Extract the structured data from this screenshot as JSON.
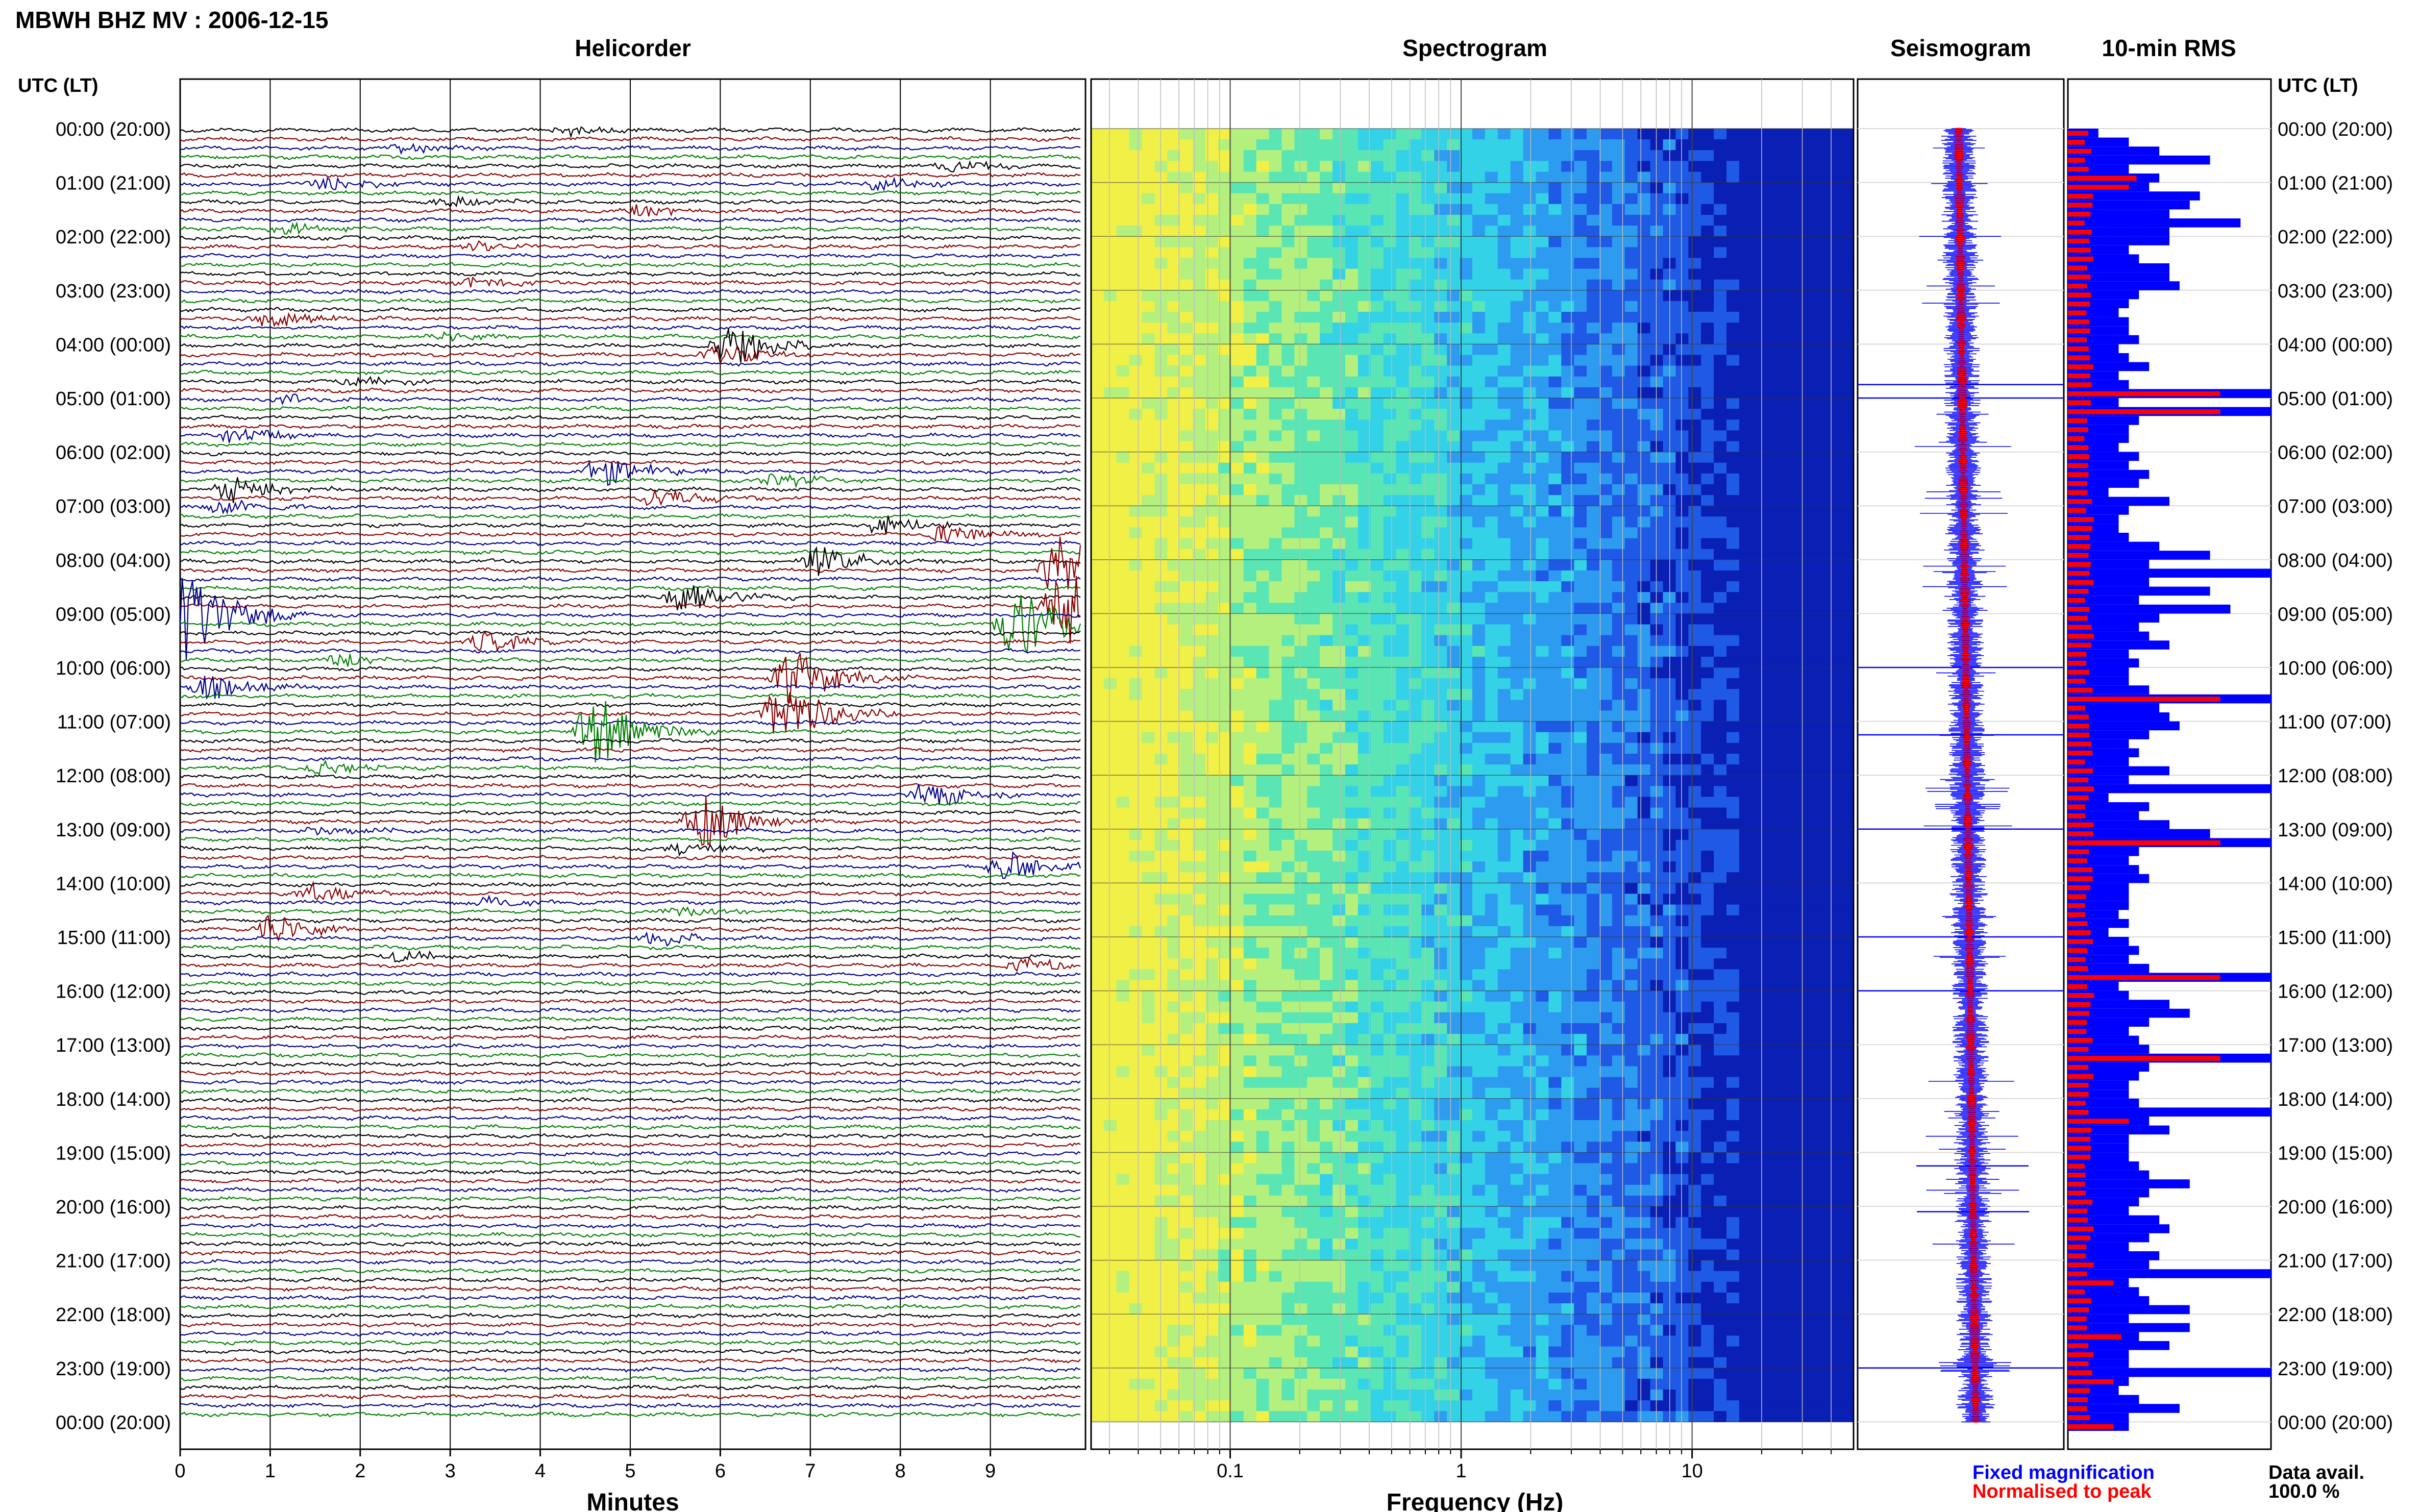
{
  "page_title": "MBWH BHZ MV : 2006-12-15",
  "axis_time_label_left": "UTC (LT)",
  "axis_time_label_right": "UTC (LT)",
  "time_labels": [
    "00:00 (20:00)",
    "01:00 (21:00)",
    "02:00 (22:00)",
    "03:00 (23:00)",
    "04:00 (00:00)",
    "05:00 (01:00)",
    "06:00 (02:00)",
    "07:00 (03:00)",
    "08:00 (04:00)",
    "09:00 (05:00)",
    "10:00 (06:00)",
    "11:00 (07:00)",
    "12:00 (08:00)",
    "13:00 (09:00)",
    "14:00 (10:00)",
    "15:00 (11:00)",
    "16:00 (12:00)",
    "17:00 (13:00)",
    "18:00 (14:00)",
    "19:00 (15:00)",
    "20:00 (16:00)",
    "21:00 (17:00)",
    "22:00 (18:00)",
    "23:00 (19:00)",
    "00:00 (20:00)"
  ],
  "colors": {
    "black": "#000000",
    "red": "#8b0000",
    "green": "#008000",
    "blue": "#00008b",
    "seis_blue": "#0000ff",
    "seis_red": "#ff0000",
    "grid": "#d9d9d9"
  },
  "legend": {
    "fixed_magnification": "Fixed magnification",
    "normalised_to_peak": "Normalised to peak",
    "data_avail_label": "Data avail.",
    "data_avail_value": "100.0 %"
  },
  "chart_data": [
    {
      "type": "line",
      "panel": "helicorder",
      "title": "Helicorder",
      "xlabel": "Minutes",
      "xlim": [
        0,
        10
      ],
      "x_ticks": [
        "0",
        "1",
        "2",
        "3",
        "4",
        "5",
        "6",
        "7",
        "8",
        "9"
      ],
      "traces_per_hour": 6,
      "trace_minutes": 10,
      "trace_colors": [
        "black",
        "red",
        "blue",
        "green"
      ],
      "events": [
        {
          "trace": 0,
          "minute": 4.3,
          "amp": 0.3
        },
        {
          "trace": 2,
          "minute": 2.5,
          "amp": 0.3
        },
        {
          "trace": 4,
          "minute": 8.6,
          "amp": 0.3
        },
        {
          "trace": 6,
          "minute": 1.6,
          "amp": 0.4
        },
        {
          "trace": 6,
          "minute": 7.8,
          "amp": 0.35
        },
        {
          "trace": 8,
          "minute": 3.0,
          "amp": 0.3
        },
        {
          "trace": 9,
          "minute": 5.1,
          "amp": 0.35
        },
        {
          "trace": 11,
          "minute": 1.2,
          "amp": 0.3
        },
        {
          "trace": 13,
          "minute": 3.3,
          "amp": 0.3
        },
        {
          "trace": 17,
          "minute": 3.2,
          "amp": 0.3
        },
        {
          "trace": 21,
          "minute": 1.0,
          "amp": 0.6
        },
        {
          "trace": 23,
          "minute": 3.0,
          "amp": 0.3
        },
        {
          "trace": 24,
          "minute": 6.1,
          "amp": 1.2
        },
        {
          "trace": 25,
          "minute": 6.0,
          "amp": 0.5
        },
        {
          "trace": 28,
          "minute": 2.0,
          "amp": 0.3
        },
        {
          "trace": 30,
          "minute": 1.2,
          "amp": 0.3
        },
        {
          "trace": 34,
          "minute": 0.6,
          "amp": 0.5
        },
        {
          "trace": 38,
          "minute": 4.7,
          "amp": 0.8
        },
        {
          "trace": 39,
          "minute": 6.6,
          "amp": 0.4
        },
        {
          "trace": 40,
          "minute": 0.6,
          "amp": 0.8
        },
        {
          "trace": 41,
          "minute": 5.3,
          "amp": 0.6
        },
        {
          "trace": 42,
          "minute": 0.5,
          "amp": 0.4
        },
        {
          "trace": 44,
          "minute": 7.8,
          "amp": 0.5
        },
        {
          "trace": 45,
          "minute": 8.5,
          "amp": 0.6
        },
        {
          "trace": 48,
          "minute": 7.1,
          "amp": 0.8
        },
        {
          "trace": 49,
          "minute": 9.8,
          "amp": 2.0
        },
        {
          "trace": 52,
          "minute": 5.6,
          "amp": 1.0
        },
        {
          "trace": 53,
          "minute": 9.8,
          "amp": 2.5
        },
        {
          "trace": 54,
          "minute": 0.0,
          "amp": 3.0
        },
        {
          "trace": 55,
          "minute": 9.3,
          "amp": 2.0
        },
        {
          "trace": 57,
          "minute": 3.4,
          "amp": 0.6
        },
        {
          "trace": 59,
          "minute": 1.8,
          "amp": 0.4
        },
        {
          "trace": 61,
          "minute": 6.8,
          "amp": 1.5
        },
        {
          "trace": 62,
          "minute": 0.3,
          "amp": 0.7
        },
        {
          "trace": 65,
          "minute": 6.7,
          "amp": 1.8
        },
        {
          "trace": 67,
          "minute": 4.6,
          "amp": 2.0
        },
        {
          "trace": 71,
          "minute": 1.6,
          "amp": 0.4
        },
        {
          "trace": 74,
          "minute": 8.3,
          "amp": 0.8
        },
        {
          "trace": 77,
          "minute": 5.8,
          "amp": 1.4
        },
        {
          "trace": 78,
          "minute": 1.6,
          "amp": 0.3
        },
        {
          "trace": 80,
          "minute": 5.6,
          "amp": 0.4
        },
        {
          "trace": 82,
          "minute": 9.2,
          "amp": 0.9
        },
        {
          "trace": 85,
          "minute": 1.5,
          "amp": 0.5
        },
        {
          "trace": 86,
          "minute": 3.4,
          "amp": 0.3
        },
        {
          "trace": 87,
          "minute": 5.6,
          "amp": 0.3
        },
        {
          "trace": 89,
          "minute": 1.0,
          "amp": 0.9
        },
        {
          "trace": 90,
          "minute": 5.3,
          "amp": 0.4
        },
        {
          "trace": 92,
          "minute": 2.4,
          "amp": 0.3
        },
        {
          "trace": 93,
          "minute": 9.4,
          "amp": 0.4
        }
      ]
    },
    {
      "type": "heatmap",
      "panel": "spectrogram",
      "title": "Spectrogram",
      "xlabel": "Frequency (Hz)",
      "x_scale": "log",
      "xlim": [
        0.025,
        50
      ],
      "x_tick_values": [
        0.1,
        1,
        10
      ],
      "x_tick_labels": [
        "0.1",
        "1",
        "10"
      ],
      "colormap": [
        "#0a1fb4",
        "#1e5ae6",
        "#2d9cf0",
        "#33d2e6",
        "#5ae6b4",
        "#b4f07d",
        "#f0f046"
      ]
    },
    {
      "type": "line",
      "panel": "seismogram",
      "title": "Seismogram",
      "spikes": [
        {
          "hour": 4.75,
          "extent": "full"
        },
        {
          "hour": 5.0,
          "extent": "full"
        },
        {
          "hour": 10.0,
          "extent": "full"
        },
        {
          "hour": 11.25,
          "extent": "full"
        },
        {
          "hour": 13.0,
          "extent": "full"
        },
        {
          "hour": 15.0,
          "extent": "full"
        },
        {
          "hour": 16.0,
          "extent": "full"
        },
        {
          "hour": 19.25,
          "extent": "partial"
        },
        {
          "hour": 20.1,
          "extent": "partial"
        },
        {
          "hour": 23.0,
          "extent": "full"
        }
      ]
    },
    {
      "type": "bar",
      "panel": "rms",
      "title": "10-min RMS",
      "orientation": "horizontal",
      "bins_per_hour": 6,
      "blue_values": [
        0.15,
        0.3,
        0.45,
        0.7,
        0.3,
        0.45,
        0.4,
        0.65,
        0.6,
        0.5,
        0.85,
        0.5,
        0.5,
        0.3,
        0.35,
        0.5,
        0.5,
        0.55,
        0.35,
        0.3,
        0.25,
        0.3,
        0.3,
        0.35,
        0.25,
        0.3,
        0.4,
        0.25,
        0.3,
        1.0,
        0.25,
        1.0,
        0.35,
        0.3,
        0.3,
        0.25,
        0.35,
        0.3,
        0.4,
        0.35,
        0.2,
        0.5,
        0.3,
        0.25,
        0.25,
        0.3,
        0.45,
        0.7,
        0.4,
        1.0,
        0.4,
        0.7,
        0.35,
        0.8,
        0.45,
        0.35,
        0.4,
        0.5,
        0.3,
        0.35,
        0.3,
        0.3,
        0.4,
        1.0,
        0.45,
        0.5,
        0.55,
        0.4,
        0.3,
        0.35,
        0.3,
        0.5,
        0.3,
        1.0,
        0.2,
        0.4,
        0.35,
        0.5,
        0.7,
        1.0,
        0.35,
        0.3,
        0.35,
        0.4,
        0.3,
        0.3,
        0.3,
        0.25,
        0.3,
        0.2,
        0.3,
        0.35,
        0.3,
        0.4,
        1.0,
        0.25,
        0.3,
        0.5,
        0.6,
        0.4,
        0.3,
        0.35,
        0.4,
        1.0,
        0.4,
        0.35,
        0.3,
        0.3,
        0.35,
        1.0,
        0.4,
        0.5,
        0.3,
        0.3,
        0.3,
        0.35,
        0.4,
        0.6,
        0.4,
        0.35,
        0.3,
        0.45,
        0.5,
        0.4,
        0.3,
        0.45,
        0.4,
        1.0,
        0.3,
        0.35,
        0.4,
        0.6,
        0.3,
        0.6,
        0.35,
        0.5,
        0.3,
        0.3,
        1.0,
        0.3,
        0.25,
        0.35,
        0.55,
        0.3,
        0.3
      ],
      "red_indices": [
        5,
        6,
        29,
        31,
        63,
        79,
        94,
        103,
        110,
        128,
        134,
        139,
        144,
        145
      ]
    }
  ]
}
